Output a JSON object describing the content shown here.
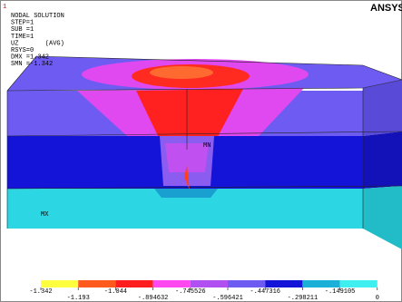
{
  "window_number": "1",
  "logo": "ANSYS",
  "info": [
    "NODAL SOLUTION",
    "STEP=1",
    "SUB =1",
    "TIME=1",
    "UZ       (AVG)",
    "RSYS=0",
    "DMX =1.342",
    "SMN =-1.342"
  ],
  "markers": {
    "max": "MX",
    "min": "MN"
  },
  "legend": {
    "labels": [
      "-1.342",
      "-1.193",
      "-1.044",
      "-.894632",
      "-.745526",
      "-.596421",
      "-.447316",
      "-.298211",
      "-.149105",
      "0"
    ]
  }
}
